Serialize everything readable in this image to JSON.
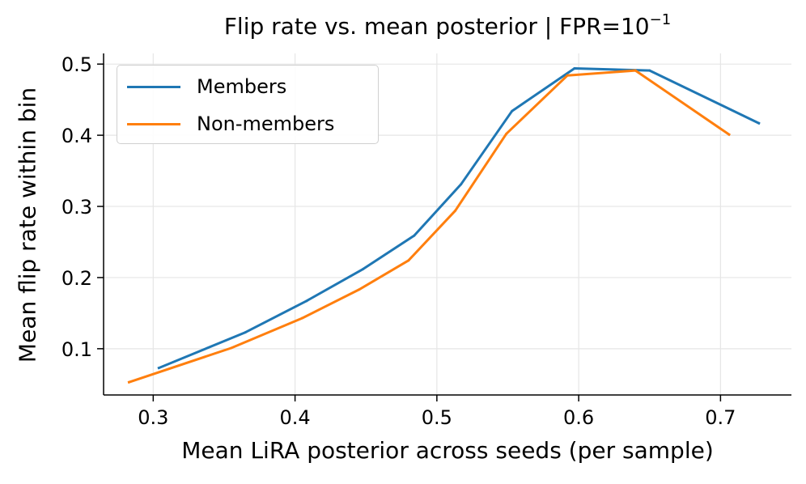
{
  "chart_data": {
    "type": "line",
    "title": "Flip rate vs. mean posterior  |  FPR=10",
    "title_exponent": "−1",
    "xlabel": "Mean LiRA posterior across seeds (per sample)",
    "ylabel": "Mean flip rate within bin",
    "xlim": [
      0.265,
      0.75
    ],
    "ylim": [
      0.035,
      0.515
    ],
    "xticks": [
      0.3,
      0.4,
      0.5,
      0.6,
      0.7
    ],
    "xtick_labels": [
      "0.3",
      "0.4",
      "0.5",
      "0.6",
      "0.7"
    ],
    "yticks": [
      0.1,
      0.2,
      0.3,
      0.4,
      0.5
    ],
    "ytick_labels": [
      "0.1",
      "0.2",
      "0.3",
      "0.4",
      "0.5"
    ],
    "grid": true,
    "legend_position": "top-left",
    "series": [
      {
        "name": "Members",
        "color": "#1f77b4",
        "x": [
          0.304,
          0.365,
          0.408,
          0.448,
          0.484,
          0.517,
          0.553,
          0.597,
          0.65,
          0.727
        ],
        "y": [
          0.073,
          0.123,
          0.167,
          0.212,
          0.259,
          0.331,
          0.434,
          0.494,
          0.491,
          0.417
        ]
      },
      {
        "name": "Non-members",
        "color": "#ff7f0e",
        "x": [
          0.283,
          0.355,
          0.405,
          0.445,
          0.48,
          0.513,
          0.549,
          0.592,
          0.64,
          0.706
        ],
        "y": [
          0.053,
          0.101,
          0.143,
          0.183,
          0.224,
          0.294,
          0.402,
          0.484,
          0.491,
          0.401
        ]
      }
    ]
  }
}
